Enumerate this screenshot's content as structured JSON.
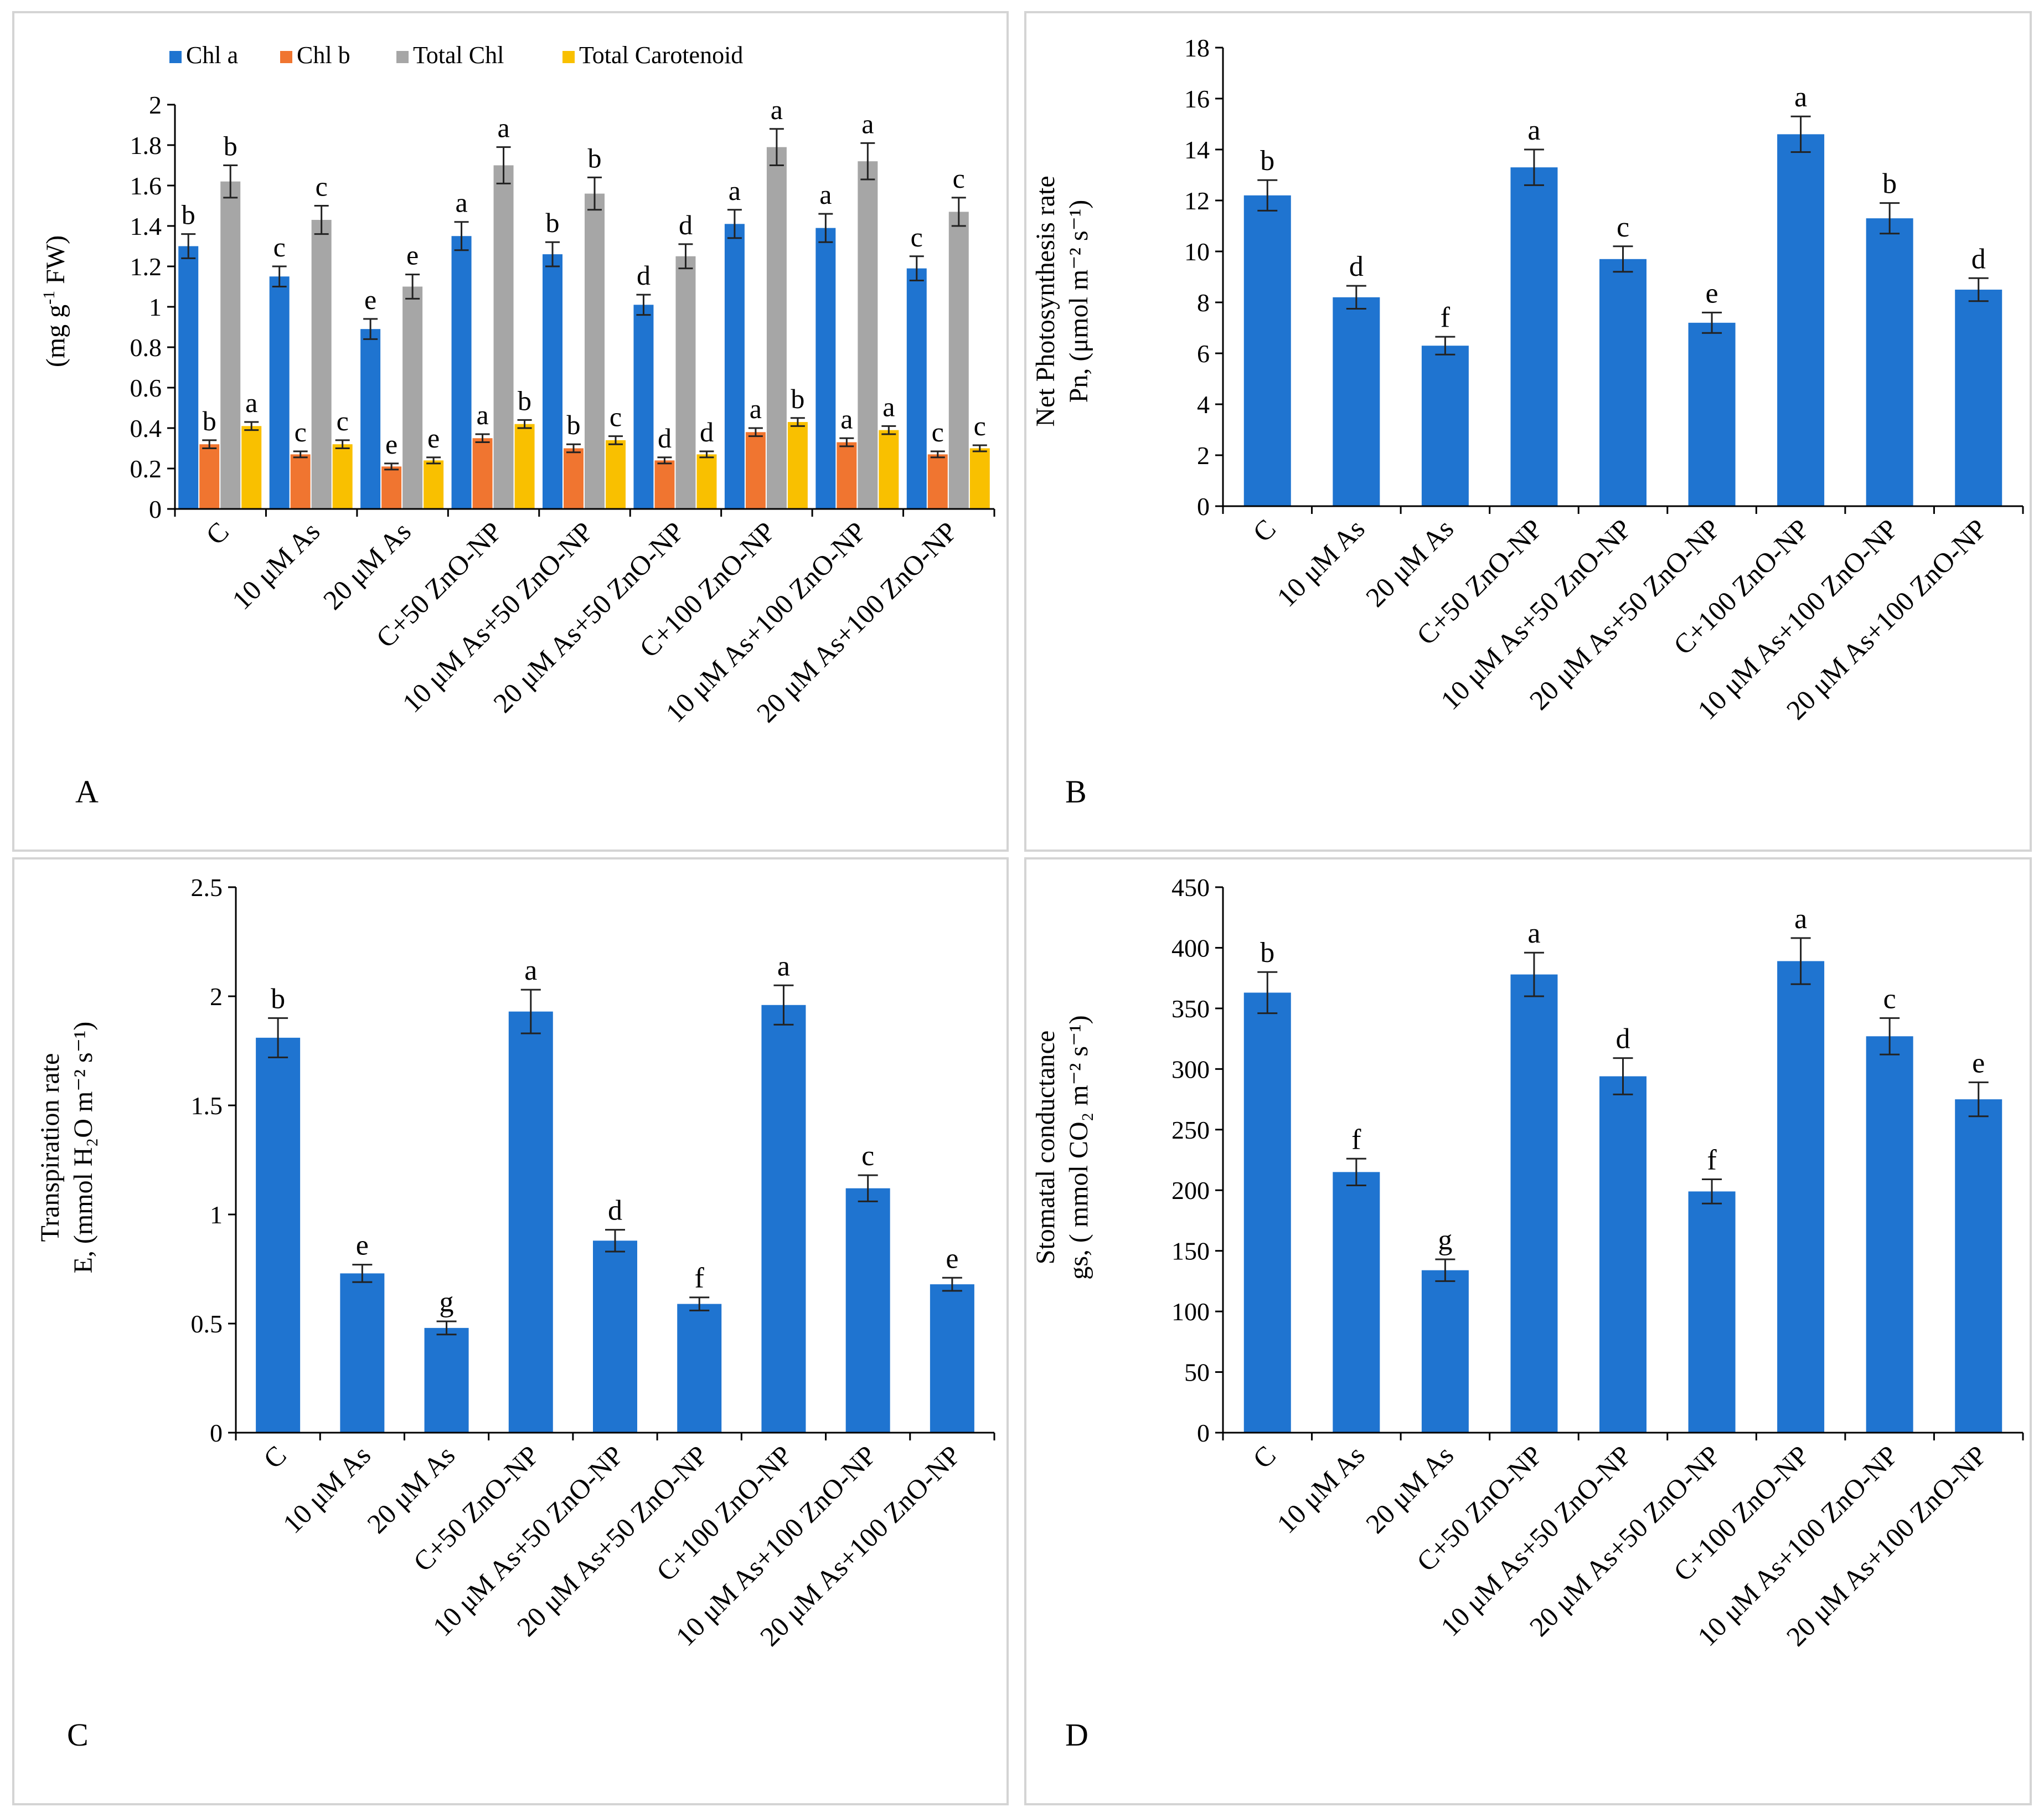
{
  "figure": {
    "categories": [
      "C",
      "10 μM As",
      "20 μM As",
      "C+50 ZnO-NP",
      "10 μM As+50 ZnO-NP",
      "20 μM As+50 ZnO-NP",
      "C+100 ZnO-NP",
      "10 μM As+100 ZnO-NP",
      "20 μM As+100 ZnO-NP"
    ],
    "colors": {
      "chl_a": "#1f74d0",
      "chl_b": "#f07530",
      "total_chl": "#a6a6a6",
      "carotenoid": "#f9c000",
      "bar": "#1f74d0"
    }
  },
  "chart_data": [
    {
      "id": "A",
      "type": "bar",
      "panel_label": "A",
      "ylabel": "(mg g⁻¹ FW)",
      "ylim": [
        0,
        2
      ],
      "yticks": [
        "0",
        "0.2",
        "0.4",
        "0.6",
        "0.8",
        "1",
        "1.2",
        "1.4",
        "1.6",
        "1.8",
        "2"
      ],
      "legend": [
        "Chl a",
        "Chl b",
        "Total Chl",
        "Total Carotenoid"
      ],
      "series": [
        {
          "name": "Chl a",
          "values": [
            1.3,
            1.15,
            0.89,
            1.35,
            1.26,
            1.01,
            1.41,
            1.39,
            1.19
          ],
          "errors": [
            0.06,
            0.05,
            0.05,
            0.07,
            0.06,
            0.05,
            0.07,
            0.07,
            0.06
          ],
          "letters": [
            "b",
            "c",
            "e",
            "a",
            "b",
            "d",
            "a",
            "a",
            "c"
          ]
        },
        {
          "name": "Chl b",
          "values": [
            0.32,
            0.27,
            0.21,
            0.35,
            0.3,
            0.24,
            0.38,
            0.33,
            0.27
          ],
          "errors": [
            0.02,
            0.015,
            0.015,
            0.02,
            0.02,
            0.015,
            0.02,
            0.02,
            0.015
          ],
          "letters": [
            "b",
            "c",
            "e",
            "a",
            "b",
            "d",
            "a",
            "a",
            "c"
          ]
        },
        {
          "name": "Total Chl",
          "values": [
            1.62,
            1.43,
            1.1,
            1.7,
            1.56,
            1.25,
            1.79,
            1.72,
            1.47
          ],
          "errors": [
            0.08,
            0.07,
            0.06,
            0.09,
            0.08,
            0.06,
            0.09,
            0.09,
            0.07
          ],
          "letters": [
            "b",
            "c",
            "e",
            "a",
            "b",
            "d",
            "a",
            "a",
            "c"
          ]
        },
        {
          "name": "Total Carotenoid",
          "values": [
            0.41,
            0.32,
            0.24,
            0.42,
            0.34,
            0.27,
            0.43,
            0.39,
            0.3
          ],
          "errors": [
            0.02,
            0.02,
            0.015,
            0.02,
            0.02,
            0.015,
            0.02,
            0.02,
            0.015
          ],
          "letters": [
            "a",
            "c",
            "e",
            "b",
            "c",
            "d",
            "b",
            "a",
            "c"
          ]
        }
      ]
    },
    {
      "id": "B",
      "type": "bar",
      "panel_label": "B",
      "ylabel_line1": "Net Photosynthesis rate",
      "ylabel_line2": "Pn, (μmol m⁻² s⁻¹)",
      "ylim": [
        0,
        18
      ],
      "yticks": [
        "0",
        "2",
        "4",
        "6",
        "8",
        "10",
        "12",
        "14",
        "16",
        "18"
      ],
      "series": [
        {
          "name": "Pn",
          "values": [
            12.2,
            8.2,
            6.3,
            13.3,
            9.7,
            7.2,
            14.6,
            11.3,
            8.5
          ],
          "errors": [
            0.6,
            0.45,
            0.35,
            0.7,
            0.5,
            0.4,
            0.7,
            0.6,
            0.45
          ],
          "letters": [
            "b",
            "d",
            "f",
            "a",
            "c",
            "e",
            "a",
            "b",
            "d"
          ]
        }
      ]
    },
    {
      "id": "C",
      "type": "bar",
      "panel_label": "C",
      "ylabel_line1": "Transpiration rate",
      "ylabel_line2": "E, (mmol H₂O m⁻² s⁻¹)",
      "ylim": [
        0,
        2.5
      ],
      "yticks": [
        "0",
        "0.5",
        "1",
        "1.5",
        "2",
        "2.5"
      ],
      "series": [
        {
          "name": "E",
          "values": [
            1.81,
            0.73,
            0.48,
            1.93,
            0.88,
            0.59,
            1.96,
            1.12,
            0.68
          ],
          "errors": [
            0.09,
            0.04,
            0.03,
            0.1,
            0.05,
            0.03,
            0.09,
            0.06,
            0.03
          ],
          "letters": [
            "b",
            "e",
            "g",
            "a",
            "d",
            "f",
            "a",
            "c",
            "e"
          ]
        }
      ]
    },
    {
      "id": "D",
      "type": "bar",
      "panel_label": "D",
      "ylabel_line1": "Stomatal conductance",
      "ylabel_line2": "gs, ( mmol CO₂ m⁻² s⁻¹)",
      "ylim": [
        0,
        450
      ],
      "yticks": [
        "0",
        "50",
        "100",
        "150",
        "200",
        "250",
        "300",
        "350",
        "400",
        "450"
      ],
      "series": [
        {
          "name": "gs",
          "values": [
            363,
            215,
            134,
            378,
            294,
            199,
            389,
            327,
            275
          ],
          "errors": [
            17,
            11,
            9,
            18,
            15,
            10,
            19,
            15,
            14
          ],
          "letters": [
            "b",
            "f",
            "g",
            "a",
            "d",
            "f",
            "a",
            "c",
            "e"
          ]
        }
      ]
    }
  ]
}
